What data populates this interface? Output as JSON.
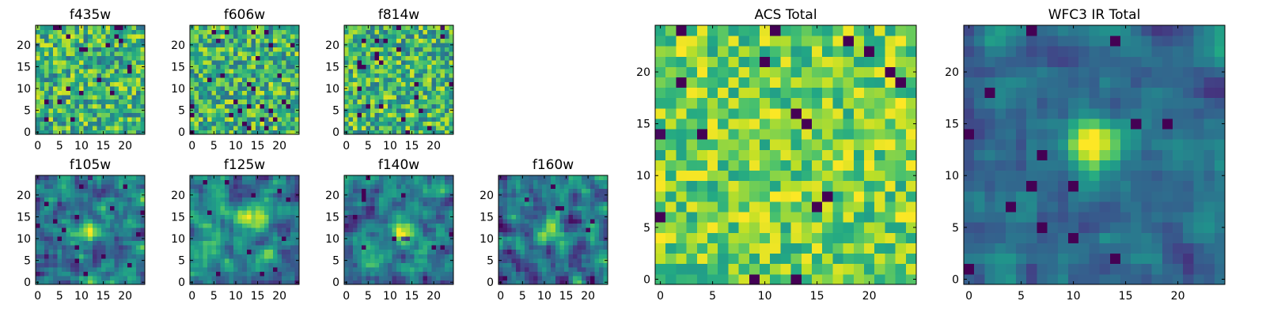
{
  "chart_data": [
    {
      "id": "f435w",
      "type": "heatmap",
      "title": "f435w",
      "nx": 25,
      "ny": 25,
      "xticks": [
        0,
        5,
        10,
        15,
        20
      ],
      "yticks": [
        0,
        5,
        10,
        15,
        20
      ],
      "colormap": "viridis",
      "texture": "noise",
      "seed": 11
    },
    {
      "id": "f606w",
      "type": "heatmap",
      "title": "f606w",
      "nx": 25,
      "ny": 25,
      "xticks": [
        0,
        5,
        10,
        15,
        20
      ],
      "yticks": [
        0,
        5,
        10,
        15,
        20
      ],
      "colormap": "viridis",
      "texture": "noise",
      "seed": 23
    },
    {
      "id": "f814w",
      "type": "heatmap",
      "title": "f814w",
      "nx": 25,
      "ny": 25,
      "xticks": [
        0,
        5,
        10,
        15,
        20
      ],
      "yticks": [
        0,
        5,
        10,
        15,
        20
      ],
      "colormap": "viridis",
      "texture": "noise",
      "seed": 37
    },
    {
      "id": "f105w",
      "type": "heatmap",
      "title": "f105w",
      "nx": 25,
      "ny": 25,
      "xticks": [
        0,
        5,
        10,
        15,
        20
      ],
      "yticks": [
        0,
        5,
        10,
        15,
        20
      ],
      "colormap": "viridis",
      "texture": "smooth",
      "seed": 41,
      "source_center": [
        12,
        12
      ]
    },
    {
      "id": "f125w",
      "type": "heatmap",
      "title": "f125w",
      "nx": 25,
      "ny": 25,
      "xticks": [
        0,
        5,
        10,
        15,
        20
      ],
      "yticks": [
        0,
        5,
        10,
        15,
        20
      ],
      "colormap": "viridis",
      "texture": "smooth",
      "seed": 53,
      "source_center": [
        14,
        15
      ]
    },
    {
      "id": "f140w",
      "type": "heatmap",
      "title": "f140w",
      "nx": 25,
      "ny": 25,
      "xticks": [
        0,
        5,
        10,
        15,
        20
      ],
      "yticks": [
        0,
        5,
        10,
        15,
        20
      ],
      "colormap": "viridis",
      "texture": "smooth",
      "seed": 67,
      "source_center": [
        13,
        12
      ]
    },
    {
      "id": "f160w",
      "type": "heatmap",
      "title": "f160w",
      "nx": 25,
      "ny": 25,
      "xticks": [
        0,
        5,
        10,
        15,
        20
      ],
      "yticks": [
        0,
        5,
        10,
        15,
        20
      ],
      "colormap": "viridis",
      "texture": "smooth_dark",
      "seed": 79,
      "source_center": [
        11,
        12
      ]
    },
    {
      "id": "acs_total",
      "type": "heatmap",
      "title": "ACS Total",
      "nx": 25,
      "ny": 25,
      "xticks": [
        0,
        5,
        10,
        15,
        20
      ],
      "yticks": [
        0,
        5,
        10,
        15,
        20
      ],
      "colormap": "viridis",
      "texture": "noise_bright",
      "seed": 97
    },
    {
      "id": "wfc3_ir_total",
      "type": "heatmap",
      "title": "WFC3 IR Total",
      "nx": 25,
      "ny": 25,
      "xticks": [
        0,
        5,
        10,
        15,
        20
      ],
      "yticks": [
        0,
        5,
        10,
        15,
        20
      ],
      "colormap": "viridis",
      "texture": "source",
      "seed": 113,
      "source_center": [
        12,
        13
      ]
    }
  ]
}
